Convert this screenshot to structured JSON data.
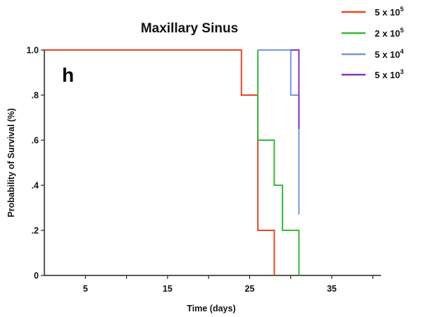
{
  "chart_data": {
    "type": "line",
    "step": true,
    "title": "Maxillary Sinus",
    "panel_label": "h",
    "xlabel": "Time (days)",
    "ylabel": "Probability of Survival (%)",
    "xlim": [
      0,
      41
    ],
    "ylim": [
      0,
      1
    ],
    "x_ticks": [
      5,
      15,
      25,
      35
    ],
    "x_minor_ticks": [
      10,
      20,
      30,
      40
    ],
    "y_ticks": [
      {
        "value": 0,
        "label": "0"
      },
      {
        "value": 0.2,
        "label": ".2"
      },
      {
        "value": 0.4,
        "label": ".4"
      },
      {
        "value": 0.6,
        "label": ".6"
      },
      {
        "value": 0.8,
        "label": ".8"
      },
      {
        "value": 1.0,
        "label": "1.0"
      }
    ],
    "legend_position": "top-right",
    "series": [
      {
        "name_base": "5 x 10",
        "name_exp": "5",
        "color": "#ee4422",
        "points": [
          [
            0,
            1.0
          ],
          [
            24,
            1.0
          ],
          [
            24,
            0.8
          ],
          [
            26,
            0.8
          ],
          [
            26,
            0.2
          ],
          [
            28,
            0.2
          ],
          [
            28,
            0
          ]
        ]
      },
      {
        "name_base": "2 x 10",
        "name_exp": "5",
        "color": "#33bb33",
        "points": [
          [
            26,
            1.0
          ],
          [
            26,
            0.6
          ],
          [
            28,
            0.6
          ],
          [
            28,
            0.4
          ],
          [
            29,
            0.4
          ],
          [
            29,
            0.2
          ],
          [
            31,
            0.2
          ],
          [
            31,
            0
          ]
        ]
      },
      {
        "name_base": "5 x 10",
        "name_exp": "4",
        "color": "#7799dd",
        "points": [
          [
            26,
            1.0
          ],
          [
            30,
            1.0
          ],
          [
            30,
            0.8
          ],
          [
            31,
            0.8
          ],
          [
            31,
            0.27
          ]
        ]
      },
      {
        "name_base": "5 x 10",
        "name_exp": "3",
        "color": "#8833bb",
        "points": [
          [
            30,
            1.0
          ],
          [
            31,
            1.0
          ],
          [
            31,
            0.65
          ]
        ]
      }
    ]
  }
}
